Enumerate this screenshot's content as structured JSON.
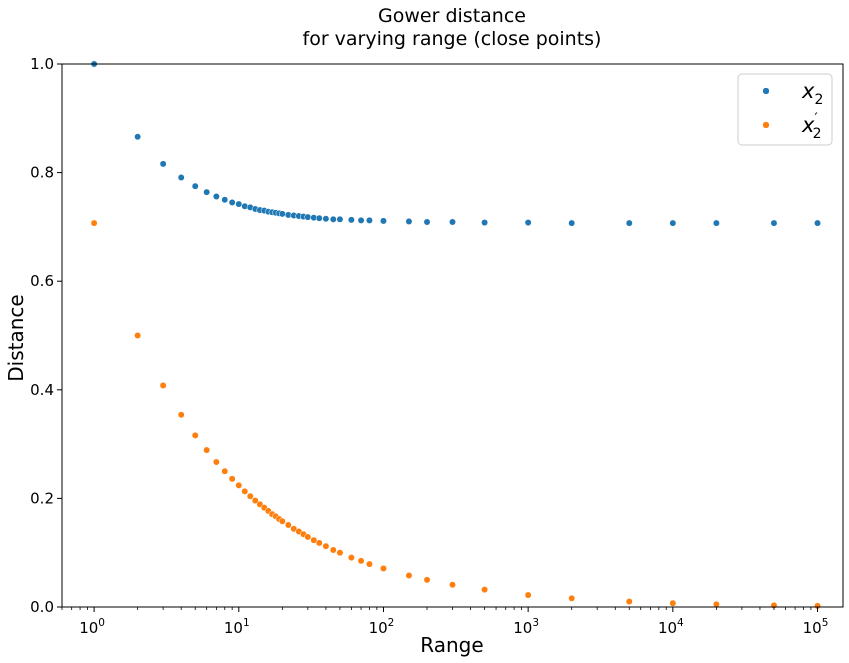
{
  "chart_data": {
    "type": "scatter",
    "title_line1": "Gower distance",
    "title_line2": "for varying range (close points)",
    "xlabel": "Range",
    "ylabel": "Distance",
    "xscale": "log",
    "xlim": [
      0.6,
      150000
    ],
    "ylim": [
      0.0,
      1.0
    ],
    "grid": false,
    "legend_position": "top-right",
    "x_ticks": [
      {
        "value": 1,
        "base": "10",
        "exp": "0"
      },
      {
        "value": 10,
        "base": "10",
        "exp": "1"
      },
      {
        "value": 100,
        "base": "10",
        "exp": "2"
      },
      {
        "value": 1000,
        "base": "10",
        "exp": "3"
      },
      {
        "value": 10000,
        "base": "10",
        "exp": "4"
      },
      {
        "value": 100000,
        "base": "10",
        "exp": "5"
      }
    ],
    "y_ticks": [
      {
        "value": 0.0,
        "label": "0.0"
      },
      {
        "value": 0.2,
        "label": "0.2"
      },
      {
        "value": 0.4,
        "label": "0.4"
      },
      {
        "value": 0.6,
        "label": "0.6"
      },
      {
        "value": 0.8,
        "label": "0.8"
      },
      {
        "value": 1.0,
        "label": "1.0"
      }
    ],
    "series": [
      {
        "name": "x2",
        "legend_base": "x",
        "legend_sub": "2",
        "legend_prime": "",
        "color": "#1f77b4",
        "x": [
          1,
          2,
          3,
          4,
          5,
          6,
          7,
          8,
          9,
          10,
          11,
          12,
          13,
          14,
          15,
          16,
          17,
          18,
          19,
          20,
          22,
          24,
          26,
          28,
          30,
          33,
          36,
          40,
          45,
          50,
          60,
          70,
          80,
          100,
          150,
          200,
          300,
          500,
          1000,
          2000,
          5000,
          10000,
          20000,
          50000,
          100000
        ],
        "y": [
          1.0,
          0.866,
          0.816,
          0.791,
          0.775,
          0.764,
          0.756,
          0.75,
          0.745,
          0.742,
          0.738,
          0.736,
          0.733,
          0.731,
          0.73,
          0.728,
          0.727,
          0.726,
          0.725,
          0.724,
          0.722,
          0.721,
          0.72,
          0.719,
          0.718,
          0.717,
          0.716,
          0.715,
          0.714,
          0.714,
          0.713,
          0.712,
          0.712,
          0.711,
          0.71,
          0.709,
          0.709,
          0.708,
          0.708,
          0.707,
          0.707,
          0.707,
          0.707,
          0.707,
          0.707
        ]
      },
      {
        "name": "x2'",
        "legend_base": "x",
        "legend_sub": "2",
        "legend_prime": "′",
        "color": "#ff7f0e",
        "x": [
          1,
          2,
          3,
          4,
          5,
          6,
          7,
          8,
          9,
          10,
          11,
          12,
          13,
          14,
          15,
          16,
          17,
          18,
          19,
          20,
          22,
          24,
          26,
          28,
          30,
          33,
          36,
          40,
          45,
          50,
          60,
          70,
          80,
          100,
          150,
          200,
          300,
          500,
          1000,
          2000,
          5000,
          10000,
          20000,
          50000,
          100000
        ],
        "y": [
          0.707,
          0.5,
          0.408,
          0.354,
          0.316,
          0.289,
          0.267,
          0.25,
          0.236,
          0.224,
          0.213,
          0.204,
          0.196,
          0.189,
          0.183,
          0.177,
          0.171,
          0.167,
          0.162,
          0.158,
          0.151,
          0.144,
          0.139,
          0.134,
          0.129,
          0.123,
          0.118,
          0.112,
          0.105,
          0.1,
          0.091,
          0.085,
          0.079,
          0.071,
          0.058,
          0.05,
          0.041,
          0.032,
          0.022,
          0.016,
          0.01,
          0.007,
          0.005,
          0.003,
          0.002
        ]
      }
    ]
  }
}
